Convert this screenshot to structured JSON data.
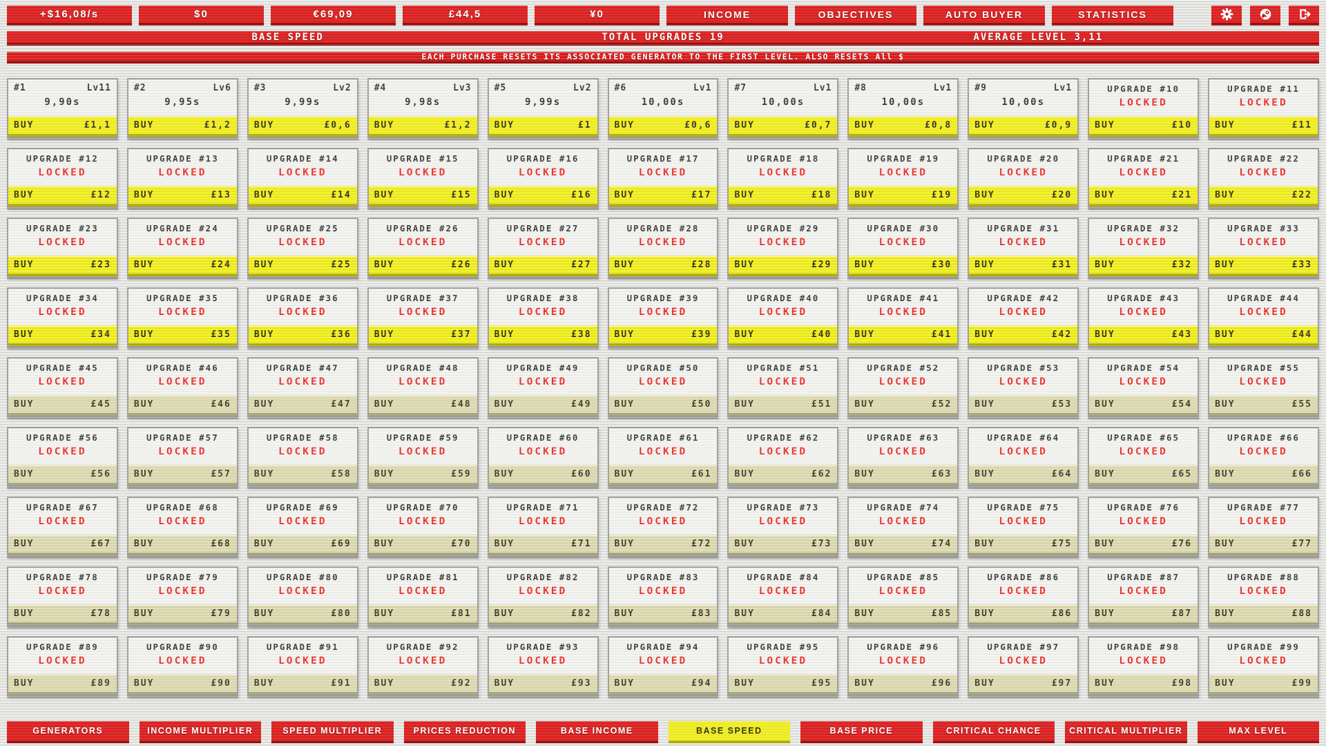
{
  "topbar": {
    "currencies": [
      "+$16,08/s",
      "$0",
      "€69,09",
      "£44,5",
      "¥0"
    ],
    "tabs": [
      "INCOME",
      "OBJECTIVES",
      "AUTO BUYER",
      "STATISTICS"
    ],
    "icon_names": [
      "gear-icon",
      "steam-icon",
      "exit-icon"
    ]
  },
  "header": {
    "section_title": "BASE SPEED",
    "total_upgrades": "TOTAL UPGRADES 19",
    "average_level": "AVERAGE LEVEL 3,11"
  },
  "notice": "EACH PURCHASE RESETS ITS ASSOCIATED GENERATOR TO THE FIRST LEVEL. ALSO RESETS All $",
  "labels": {
    "buy": "BUY",
    "locked": "LOCKED"
  },
  "accent_colors": {
    "red": "#e01d1d",
    "yellow": "#f0ed13",
    "beige": "#dbd8ac",
    "locked_red": "#e8302a"
  },
  "generators": [
    {
      "id": "#1",
      "level": "Lv11",
      "time": "9,90s",
      "price": "£1,1",
      "affordable": true
    },
    {
      "id": "#2",
      "level": "Lv6",
      "time": "9,95s",
      "price": "£1,2",
      "affordable": true
    },
    {
      "id": "#3",
      "level": "Lv2",
      "time": "9,99s",
      "price": "£0,6",
      "affordable": true
    },
    {
      "id": "#4",
      "level": "Lv3",
      "time": "9,98s",
      "price": "£1,2",
      "affordable": true
    },
    {
      "id": "#5",
      "level": "Lv2",
      "time": "9,99s",
      "price": "£1",
      "affordable": true
    },
    {
      "id": "#6",
      "level": "Lv1",
      "time": "10,00s",
      "price": "£0,6",
      "affordable": true
    },
    {
      "id": "#7",
      "level": "Lv1",
      "time": "10,00s",
      "price": "£0,7",
      "affordable": true
    },
    {
      "id": "#8",
      "level": "Lv1",
      "time": "10,00s",
      "price": "£0,8",
      "affordable": true
    },
    {
      "id": "#9",
      "level": "Lv1",
      "time": "10,00s",
      "price": "£0,9",
      "affordable": true
    }
  ],
  "upgrades": [
    {
      "title": "UPGRADE #10",
      "price": "£10",
      "affordable": true
    },
    {
      "title": "UPGRADE #11",
      "price": "£11",
      "affordable": true
    },
    {
      "title": "UPGRADE #12",
      "price": "£12",
      "affordable": true
    },
    {
      "title": "UPGRADE #13",
      "price": "£13",
      "affordable": true
    },
    {
      "title": "UPGRADE #14",
      "price": "£14",
      "affordable": true
    },
    {
      "title": "UPGRADE #15",
      "price": "£15",
      "affordable": true
    },
    {
      "title": "UPGRADE #16",
      "price": "£16",
      "affordable": true
    },
    {
      "title": "UPGRADE #17",
      "price": "£17",
      "affordable": true
    },
    {
      "title": "UPGRADE #18",
      "price": "£18",
      "affordable": true
    },
    {
      "title": "UPGRADE #19",
      "price": "£19",
      "affordable": true
    },
    {
      "title": "UPGRADE #20",
      "price": "£20",
      "affordable": true
    },
    {
      "title": "UPGRADE #21",
      "price": "£21",
      "affordable": true
    },
    {
      "title": "UPGRADE #22",
      "price": "£22",
      "affordable": true
    },
    {
      "title": "UPGRADE #23",
      "price": "£23",
      "affordable": true
    },
    {
      "title": "UPGRADE #24",
      "price": "£24",
      "affordable": true
    },
    {
      "title": "UPGRADE #25",
      "price": "£25",
      "affordable": true
    },
    {
      "title": "UPGRADE #26",
      "price": "£26",
      "affordable": true
    },
    {
      "title": "UPGRADE #27",
      "price": "£27",
      "affordable": true
    },
    {
      "title": "UPGRADE #28",
      "price": "£28",
      "affordable": true
    },
    {
      "title": "UPGRADE #29",
      "price": "£29",
      "affordable": true
    },
    {
      "title": "UPGRADE #30",
      "price": "£30",
      "affordable": true
    },
    {
      "title": "UPGRADE #31",
      "price": "£31",
      "affordable": true
    },
    {
      "title": "UPGRADE #32",
      "price": "£32",
      "affordable": true
    },
    {
      "title": "UPGRADE #33",
      "price": "£33",
      "affordable": true
    },
    {
      "title": "UPGRADE #34",
      "price": "£34",
      "affordable": true
    },
    {
      "title": "UPGRADE #35",
      "price": "£35",
      "affordable": true
    },
    {
      "title": "UPGRADE #36",
      "price": "£36",
      "affordable": true
    },
    {
      "title": "UPGRADE #37",
      "price": "£37",
      "affordable": true
    },
    {
      "title": "UPGRADE #38",
      "price": "£38",
      "affordable": true
    },
    {
      "title": "UPGRADE #39",
      "price": "£39",
      "affordable": true
    },
    {
      "title": "UPGRADE #40",
      "price": "£40",
      "affordable": true
    },
    {
      "title": "UPGRADE #41",
      "price": "£41",
      "affordable": true
    },
    {
      "title": "UPGRADE #42",
      "price": "£42",
      "affordable": true
    },
    {
      "title": "UPGRADE #43",
      "price": "£43",
      "affordable": true
    },
    {
      "title": "UPGRADE #44",
      "price": "£44",
      "affordable": true
    },
    {
      "title": "UPGRADE #45",
      "price": "£45",
      "affordable": false
    },
    {
      "title": "UPGRADE #46",
      "price": "£46",
      "affordable": false
    },
    {
      "title": "UPGRADE #47",
      "price": "£47",
      "affordable": false
    },
    {
      "title": "UPGRADE #48",
      "price": "£48",
      "affordable": false
    },
    {
      "title": "UPGRADE #49",
      "price": "£49",
      "affordable": false
    },
    {
      "title": "UPGRADE #50",
      "price": "£50",
      "affordable": false
    },
    {
      "title": "UPGRADE #51",
      "price": "£51",
      "affordable": false
    },
    {
      "title": "UPGRADE #52",
      "price": "£52",
      "affordable": false
    },
    {
      "title": "UPGRADE #53",
      "price": "£53",
      "affordable": false
    },
    {
      "title": "UPGRADE #54",
      "price": "£54",
      "affordable": false
    },
    {
      "title": "UPGRADE #55",
      "price": "£55",
      "affordable": false
    },
    {
      "title": "UPGRADE #56",
      "price": "£56",
      "affordable": false
    },
    {
      "title": "UPGRADE #57",
      "price": "£57",
      "affordable": false
    },
    {
      "title": "UPGRADE #58",
      "price": "£58",
      "affordable": false
    },
    {
      "title": "UPGRADE #59",
      "price": "£59",
      "affordable": false
    },
    {
      "title": "UPGRADE #60",
      "price": "£60",
      "affordable": false
    },
    {
      "title": "UPGRADE #61",
      "price": "£61",
      "affordable": false
    },
    {
      "title": "UPGRADE #62",
      "price": "£62",
      "affordable": false
    },
    {
      "title": "UPGRADE #63",
      "price": "£63",
      "affordable": false
    },
    {
      "title": "UPGRADE #64",
      "price": "£64",
      "affordable": false
    },
    {
      "title": "UPGRADE #65",
      "price": "£65",
      "affordable": false
    },
    {
      "title": "UPGRADE #66",
      "price": "£66",
      "affordable": false
    },
    {
      "title": "UPGRADE #67",
      "price": "£67",
      "affordable": false
    },
    {
      "title": "UPGRADE #68",
      "price": "£68",
      "affordable": false
    },
    {
      "title": "UPGRADE #69",
      "price": "£69",
      "affordable": false
    },
    {
      "title": "UPGRADE #70",
      "price": "£70",
      "affordable": false
    },
    {
      "title": "UPGRADE #71",
      "price": "£71",
      "affordable": false
    },
    {
      "title": "UPGRADE #72",
      "price": "£72",
      "affordable": false
    },
    {
      "title": "UPGRADE #73",
      "price": "£73",
      "affordable": false
    },
    {
      "title": "UPGRADE #74",
      "price": "£74",
      "affordable": false
    },
    {
      "title": "UPGRADE #75",
      "price": "£75",
      "affordable": false
    },
    {
      "title": "UPGRADE #76",
      "price": "£76",
      "affordable": false
    },
    {
      "title": "UPGRADE #77",
      "price": "£77",
      "affordable": false
    },
    {
      "title": "UPGRADE #78",
      "price": "£78",
      "affordable": false
    },
    {
      "title": "UPGRADE #79",
      "price": "£79",
      "affordable": false
    },
    {
      "title": "UPGRADE #80",
      "price": "£80",
      "affordable": false
    },
    {
      "title": "UPGRADE #81",
      "price": "£81",
      "affordable": false
    },
    {
      "title": "UPGRADE #82",
      "price": "£82",
      "affordable": false
    },
    {
      "title": "UPGRADE #83",
      "price": "£83",
      "affordable": false
    },
    {
      "title": "UPGRADE #84",
      "price": "£84",
      "affordable": false
    },
    {
      "title": "UPGRADE #85",
      "price": "£85",
      "affordable": false
    },
    {
      "title": "UPGRADE #86",
      "price": "£86",
      "affordable": false
    },
    {
      "title": "UPGRADE #87",
      "price": "£87",
      "affordable": false
    },
    {
      "title": "UPGRADE #88",
      "price": "£88",
      "affordable": false
    },
    {
      "title": "UPGRADE #89",
      "price": "£89",
      "affordable": false
    },
    {
      "title": "UPGRADE #90",
      "price": "£90",
      "affordable": false
    },
    {
      "title": "UPGRADE #91",
      "price": "£91",
      "affordable": false
    },
    {
      "title": "UPGRADE #92",
      "price": "£92",
      "affordable": false
    },
    {
      "title": "UPGRADE #93",
      "price": "£93",
      "affordable": false
    },
    {
      "title": "UPGRADE #94",
      "price": "£94",
      "affordable": false
    },
    {
      "title": "UPGRADE #95",
      "price": "£95",
      "affordable": false
    },
    {
      "title": "UPGRADE #96",
      "price": "£96",
      "affordable": false
    },
    {
      "title": "UPGRADE #97",
      "price": "£97",
      "affordable": false
    },
    {
      "title": "UPGRADE #98",
      "price": "£98",
      "affordable": false
    },
    {
      "title": "UPGRADE #99",
      "price": "£99",
      "affordable": false
    }
  ],
  "bottombar": {
    "tabs": [
      {
        "label": "GENERATORS",
        "active": false
      },
      {
        "label": "INCOME MULTIPLIER",
        "active": false
      },
      {
        "label": "SPEED MULTIPLIER",
        "active": false
      },
      {
        "label": "PRICES REDUCTION",
        "active": false
      },
      {
        "label": "BASE INCOME",
        "active": false
      },
      {
        "label": "BASE SPEED",
        "active": true
      },
      {
        "label": "BASE PRICE",
        "active": false
      },
      {
        "label": "CRITICAL CHANCE",
        "active": false
      },
      {
        "label": "CRITICAL MULTIPLIER",
        "active": false
      },
      {
        "label": "MAX LEVEL",
        "active": false
      }
    ]
  }
}
